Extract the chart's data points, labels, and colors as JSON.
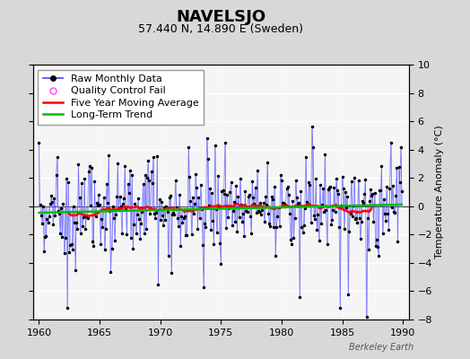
{
  "title": "NAVELSJO",
  "subtitle": "57.440 N, 14.890 E (Sweden)",
  "ylabel": "Temperature Anomaly (°C)",
  "ylim": [
    -8,
    10
  ],
  "xlim": [
    1959.5,
    1990.5
  ],
  "yticks": [
    -8,
    -6,
    -4,
    -2,
    0,
    2,
    4,
    6,
    8,
    10
  ],
  "xticks": [
    1960,
    1965,
    1970,
    1975,
    1980,
    1985,
    1990
  ],
  "background_color": "#d8d8d8",
  "plot_bg_color": "#f5f5f5",
  "grid_color": "#ffffff",
  "line_color": "#4444ff",
  "stem_color": "#8888ff",
  "moving_avg_color": "#ff0000",
  "trend_color": "#00bb00",
  "qc_fail_color": "#ff44ff",
  "watermark": "Berkeley Earth",
  "title_fontsize": 13,
  "subtitle_fontsize": 9,
  "ylabel_fontsize": 8,
  "tick_fontsize": 8,
  "legend_fontsize": 8
}
